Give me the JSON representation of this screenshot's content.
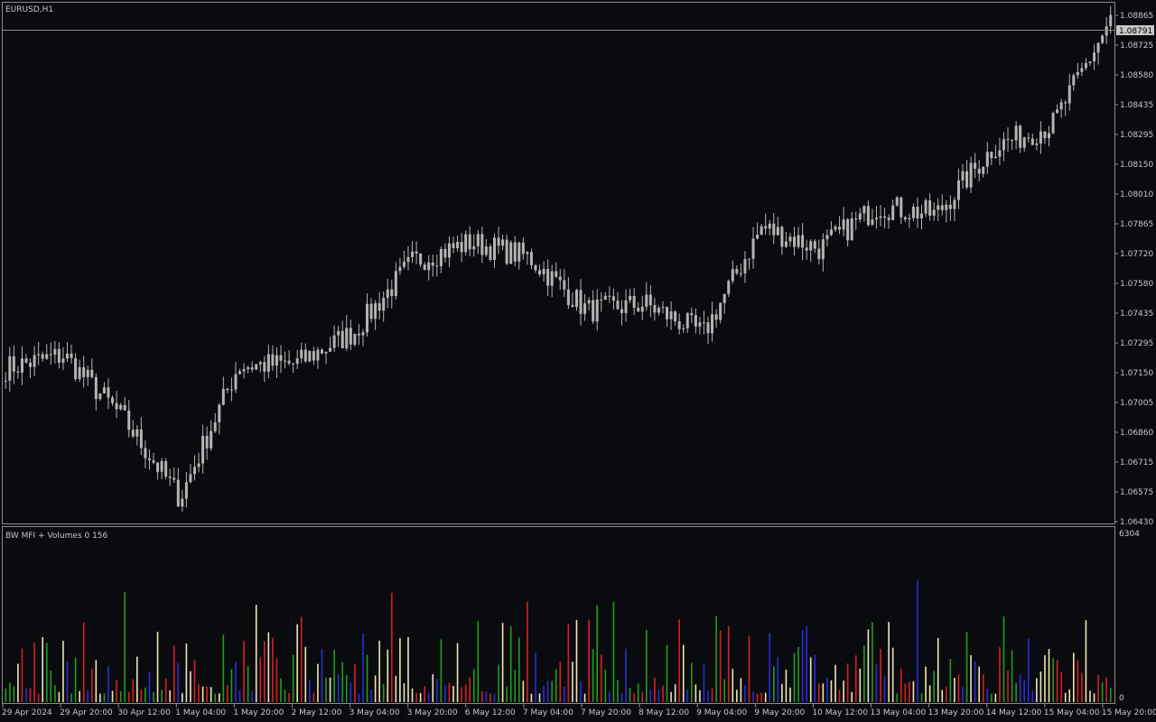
{
  "main_pane": {
    "title": "EURUSD,H1",
    "current_price": "1.08791",
    "price_axis": [
      "1.08865",
      "1.08725",
      "1.08580",
      "1.08435",
      "1.08295",
      "1.08150",
      "1.08010",
      "1.07865",
      "1.07720",
      "1.07580",
      "1.07435",
      "1.07295",
      "1.07150",
      "1.07005",
      "1.06860",
      "1.06715",
      "1.06575",
      "1.06430"
    ]
  },
  "indicator_pane": {
    "title": "BW MFI + Volumes 0 156",
    "axis_top": "6304",
    "axis_bottom": "0"
  },
  "time_axis": [
    "29 Apr 2024",
    "29 Apr 20:00",
    "30 Apr 12:00",
    "1 May 04:00",
    "1 May 20:00",
    "2 May 12:00",
    "3 May 04:00",
    "3 May 20:00",
    "6 May 12:00",
    "7 May 04:00",
    "7 May 20:00",
    "8 May 12:00",
    "9 May 04:00",
    "9 May 20:00",
    "10 May 12:00",
    "13 May 04:00",
    "13 May 20:00",
    "14 May 12:00",
    "15 May 04:00",
    "15 May 20:00"
  ],
  "colors": {
    "background": "#0a0b0f",
    "pane_border": "#8c8c8c",
    "candle": "#b4b4b4",
    "text": "#c8c8c8",
    "bar_green": "#1e9e1e",
    "bar_blue": "#2c2cd8",
    "bar_red": "#d82020",
    "bar_pale": "#f0e6b4",
    "price_tag_bg": "#c8c8c8",
    "price_tag_text": "#000000"
  },
  "chart_data": {
    "type": "candlestick",
    "symbol": "EURUSD",
    "timeframe": "H1",
    "ylim": [
      1.0643,
      1.0887
    ],
    "close_path": [
      {
        "x": "29 Apr 2024",
        "y": 1.0716
      },
      {
        "x": "29 Apr 20:00",
        "y": 1.0722
      },
      {
        "x": "30 Apr 12:00",
        "y": 1.0693
      },
      {
        "x": "1 May 04:00",
        "y": 1.0655
      },
      {
        "x": "1 May 20:00",
        "y": 1.0717
      },
      {
        "x": "2 May 12:00",
        "y": 1.0718
      },
      {
        "x": "3 May 04:00",
        "y": 1.0733
      },
      {
        "x": "3 May 20:00",
        "y": 1.0766
      },
      {
        "x": "6 May 12:00",
        "y": 1.0775
      },
      {
        "x": "7 May 04:00",
        "y": 1.0768
      },
      {
        "x": "7 May 20:00",
        "y": 1.0743
      },
      {
        "x": "8 May 12:00",
        "y": 1.0746
      },
      {
        "x": "9 May 04:00",
        "y": 1.0732
      },
      {
        "x": "9 May 20:00",
        "y": 1.0782
      },
      {
        "x": "10 May 12:00",
        "y": 1.0772
      },
      {
        "x": "13 May 04:00",
        "y": 1.0792
      },
      {
        "x": "13 May 20:00",
        "y": 1.0788
      },
      {
        "x": "14 May 12:00",
        "y": 1.082
      },
      {
        "x": "15 May 04:00",
        "y": 1.083
      },
      {
        "x": "15 May 20:00",
        "y": 1.0879
      }
    ],
    "volume_max": 6304,
    "volume_min": 0,
    "volume_colors": [
      "green",
      "blue",
      "red",
      "pale"
    ]
  }
}
